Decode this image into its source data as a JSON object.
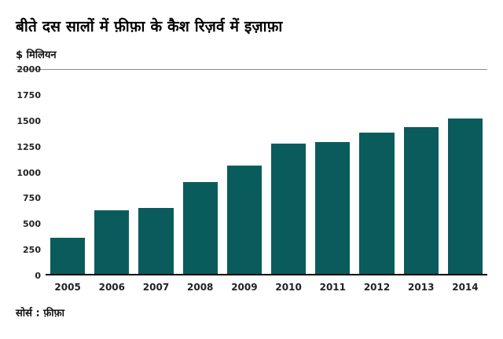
{
  "title": "बीते दस सालों में फ़ीफ़ा के कैश रिज़र्व में इज़ाफ़ा",
  "source": "सोर्स : फ़ीफ़ा",
  "colors": {
    "bar": "#0a5c5c",
    "axis_line": "#000000",
    "top_line": "#8a8a8a"
  },
  "chart_data": {
    "type": "bar",
    "title": "बीते दस सालों में फ़ीफ़ा के कैश रिज़र्व में इज़ाफ़ा",
    "ylabel": "$ मिलियन",
    "xlabel": "",
    "categories": [
      "2005",
      "2006",
      "2007",
      "2008",
      "2009",
      "2010",
      "2011",
      "2012",
      "2013",
      "2014"
    ],
    "values": [
      350,
      620,
      640,
      900,
      1060,
      1270,
      1290,
      1380,
      1430,
      1520
    ],
    "ylim": [
      0,
      2000
    ],
    "y_ticks": [
      2000,
      1750,
      1500,
      1250,
      1000,
      750,
      500,
      250,
      0
    ],
    "grid": false,
    "legend": false,
    "bar_color": "#0a5c5c"
  }
}
